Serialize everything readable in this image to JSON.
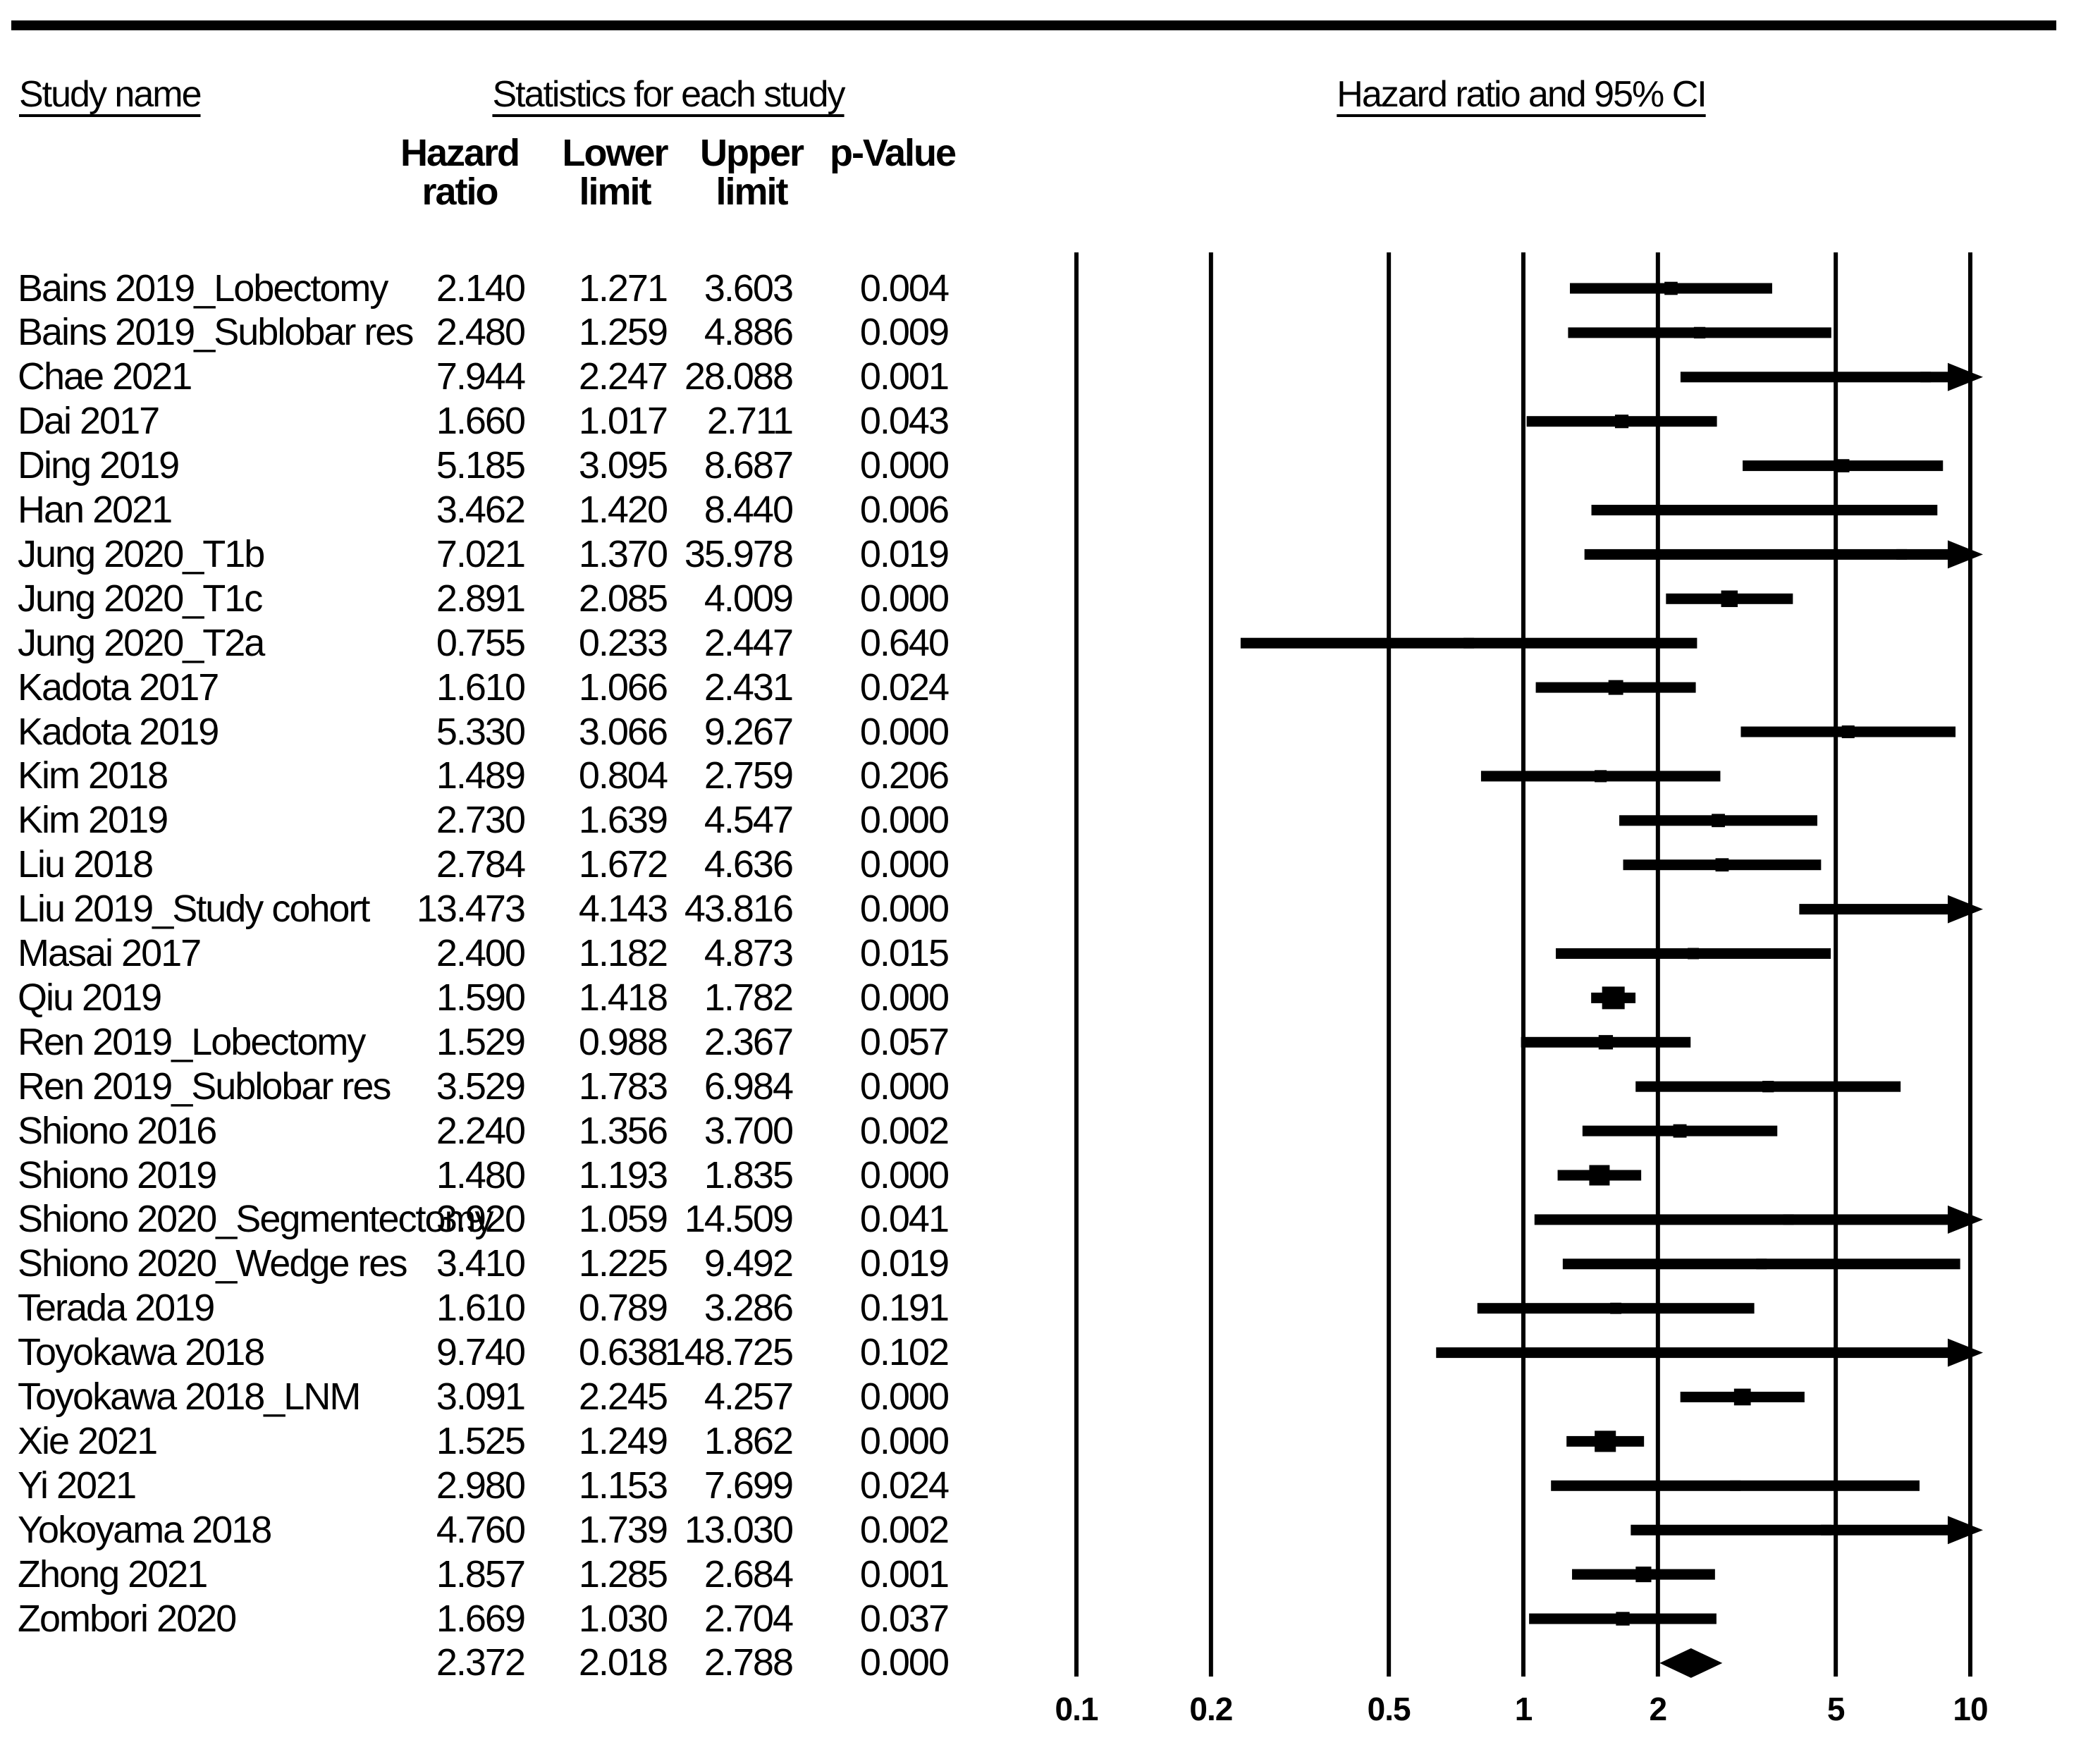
{
  "colors": {
    "ink": "#000000",
    "background": "#ffffff"
  },
  "headers": {
    "study_name": "Study name",
    "statistics": "Statistics for each study",
    "hr_ci": "Hazard ratio and 95% CI"
  },
  "columns": {
    "hr": [
      "Hazard",
      "ratio"
    ],
    "lower": [
      "Lower",
      "limit"
    ],
    "upper": [
      "Upper",
      "limit"
    ],
    "p": [
      "",
      "p-Value"
    ]
  },
  "chart_data": {
    "type": "forest",
    "effect_measure": "Hazard ratio",
    "x_axis": {
      "scale": "log10",
      "range": [
        0.1,
        10
      ],
      "ticks": [
        0.1,
        0.2,
        0.5,
        1,
        2,
        5,
        10
      ],
      "tick_labels": [
        "0.1",
        "0.2",
        "0.5",
        "1",
        "2",
        "5",
        "10"
      ]
    },
    "studies": [
      {
        "name": "Bains 2019_Lobectomy",
        "hr": "2.140",
        "lower": "1.271",
        "upper": "3.603",
        "p": "0.004"
      },
      {
        "name": "Bains 2019_Sublobar res",
        "hr": "2.480",
        "lower": "1.259",
        "upper": "4.886",
        "p": "0.009"
      },
      {
        "name": "Chae 2021",
        "hr": "7.944",
        "lower": "2.247",
        "upper": "28.088",
        "p": "0.001"
      },
      {
        "name": "Dai 2017",
        "hr": "1.660",
        "lower": "1.017",
        "upper": "2.711",
        "p": "0.043"
      },
      {
        "name": "Ding 2019",
        "hr": "5.185",
        "lower": "3.095",
        "upper": "8.687",
        "p": "0.000"
      },
      {
        "name": "Han 2021",
        "hr": "3.462",
        "lower": "1.420",
        "upper": "8.440",
        "p": "0.006"
      },
      {
        "name": "Jung 2020_T1b",
        "hr": "7.021",
        "lower": "1.370",
        "upper": "35.978",
        "p": "0.019"
      },
      {
        "name": "Jung 2020_T1c",
        "hr": "2.891",
        "lower": "2.085",
        "upper": "4.009",
        "p": "0.000"
      },
      {
        "name": "Jung 2020_T2a",
        "hr": "0.755",
        "lower": "0.233",
        "upper": "2.447",
        "p": "0.640"
      },
      {
        "name": "Kadota 2017",
        "hr": "1.610",
        "lower": "1.066",
        "upper": "2.431",
        "p": "0.024"
      },
      {
        "name": "Kadota 2019",
        "hr": "5.330",
        "lower": "3.066",
        "upper": "9.267",
        "p": "0.000"
      },
      {
        "name": "Kim 2018",
        "hr": "1.489",
        "lower": "0.804",
        "upper": "2.759",
        "p": "0.206"
      },
      {
        "name": "Kim 2019",
        "hr": "2.730",
        "lower": "1.639",
        "upper": "4.547",
        "p": "0.000"
      },
      {
        "name": "Liu 2018",
        "hr": "2.784",
        "lower": "1.672",
        "upper": "4.636",
        "p": "0.000"
      },
      {
        "name": "Liu 2019_Study cohort",
        "hr": "13.473",
        "lower": "4.143",
        "upper": "43.816",
        "p": "0.000"
      },
      {
        "name": "Masai 2017",
        "hr": "2.400",
        "lower": "1.182",
        "upper": "4.873",
        "p": "0.015"
      },
      {
        "name": "Qiu 2019",
        "hr": "1.590",
        "lower": "1.418",
        "upper": "1.782",
        "p": "0.000"
      },
      {
        "name": "Ren 2019_Lobectomy",
        "hr": "1.529",
        "lower": "0.988",
        "upper": "2.367",
        "p": "0.057"
      },
      {
        "name": "Ren 2019_Sublobar res",
        "hr": "3.529",
        "lower": "1.783",
        "upper": "6.984",
        "p": "0.000"
      },
      {
        "name": "Shiono 2016",
        "hr": "2.240",
        "lower": "1.356",
        "upper": "3.700",
        "p": "0.002"
      },
      {
        "name": "Shiono 2019",
        "hr": "1.480",
        "lower": "1.193",
        "upper": "1.835",
        "p": "0.000"
      },
      {
        "name": "Shiono 2020_Segmentectomy",
        "hr": "3.920",
        "lower": "1.059",
        "upper": "14.509",
        "p": "0.041"
      },
      {
        "name": "Shiono 2020_Wedge res",
        "hr": "3.410",
        "lower": "1.225",
        "upper": "9.492",
        "p": "0.019"
      },
      {
        "name": "Terada 2019",
        "hr": "1.610",
        "lower": "0.789",
        "upper": "3.286",
        "p": "0.191"
      },
      {
        "name": "Toyokawa 2018",
        "hr": "9.740",
        "lower": "0.638",
        "upper": "148.725",
        "p": "0.102"
      },
      {
        "name": "Toyokawa 2018_LNM",
        "hr": "3.091",
        "lower": "2.245",
        "upper": "4.257",
        "p": "0.000"
      },
      {
        "name": "Xie 2021",
        "hr": "1.525",
        "lower": "1.249",
        "upper": "1.862",
        "p": "0.000"
      },
      {
        "name": "Yi 2021",
        "hr": "2.980",
        "lower": "1.153",
        "upper": "7.699",
        "p": "0.024"
      },
      {
        "name": "Yokoyama 2018",
        "hr": "4.760",
        "lower": "1.739",
        "upper": "13.030",
        "p": "0.002"
      },
      {
        "name": "Zhong 2021",
        "hr": "1.857",
        "lower": "1.285",
        "upper": "2.684",
        "p": "0.001"
      },
      {
        "name": "Zombori 2020",
        "hr": "1.669",
        "lower": "1.030",
        "upper": "2.704",
        "p": "0.037"
      }
    ],
    "summary": {
      "name": "",
      "hr": "2.372",
      "lower": "2.018",
      "upper": "2.788",
      "p": "0.000"
    }
  }
}
